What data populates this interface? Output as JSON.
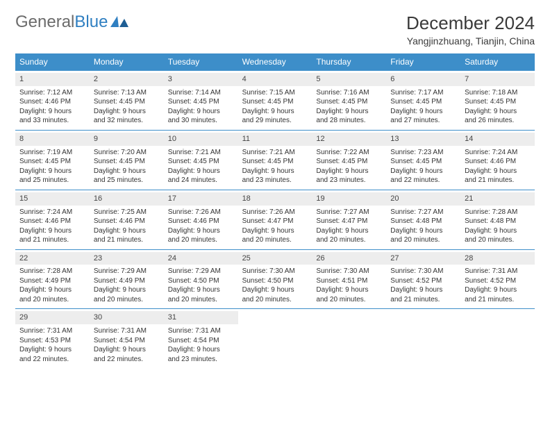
{
  "logo": {
    "text1": "General",
    "text2": "Blue"
  },
  "title": "December 2024",
  "location": "Yangjinzhuang, Tianjin, China",
  "colors": {
    "header_bg": "#3d8ec9",
    "header_text": "#ffffff",
    "daynum_bg": "#ededed",
    "border": "#3d8ec9",
    "logo_gray": "#6b6b6b",
    "logo_blue": "#2f7fc1"
  },
  "dayNames": [
    "Sunday",
    "Monday",
    "Tuesday",
    "Wednesday",
    "Thursday",
    "Friday",
    "Saturday"
  ],
  "weeks": [
    [
      {
        "day": 1,
        "sunrise": "7:12 AM",
        "sunset": "4:46 PM",
        "dl1": "Daylight: 9 hours",
        "dl2": "and 33 minutes."
      },
      {
        "day": 2,
        "sunrise": "7:13 AM",
        "sunset": "4:45 PM",
        "dl1": "Daylight: 9 hours",
        "dl2": "and 32 minutes."
      },
      {
        "day": 3,
        "sunrise": "7:14 AM",
        "sunset": "4:45 PM",
        "dl1": "Daylight: 9 hours",
        "dl2": "and 30 minutes."
      },
      {
        "day": 4,
        "sunrise": "7:15 AM",
        "sunset": "4:45 PM",
        "dl1": "Daylight: 9 hours",
        "dl2": "and 29 minutes."
      },
      {
        "day": 5,
        "sunrise": "7:16 AM",
        "sunset": "4:45 PM",
        "dl1": "Daylight: 9 hours",
        "dl2": "and 28 minutes."
      },
      {
        "day": 6,
        "sunrise": "7:17 AM",
        "sunset": "4:45 PM",
        "dl1": "Daylight: 9 hours",
        "dl2": "and 27 minutes."
      },
      {
        "day": 7,
        "sunrise": "7:18 AM",
        "sunset": "4:45 PM",
        "dl1": "Daylight: 9 hours",
        "dl2": "and 26 minutes."
      }
    ],
    [
      {
        "day": 8,
        "sunrise": "7:19 AM",
        "sunset": "4:45 PM",
        "dl1": "Daylight: 9 hours",
        "dl2": "and 25 minutes."
      },
      {
        "day": 9,
        "sunrise": "7:20 AM",
        "sunset": "4:45 PM",
        "dl1": "Daylight: 9 hours",
        "dl2": "and 25 minutes."
      },
      {
        "day": 10,
        "sunrise": "7:21 AM",
        "sunset": "4:45 PM",
        "dl1": "Daylight: 9 hours",
        "dl2": "and 24 minutes."
      },
      {
        "day": 11,
        "sunrise": "7:21 AM",
        "sunset": "4:45 PM",
        "dl1": "Daylight: 9 hours",
        "dl2": "and 23 minutes."
      },
      {
        "day": 12,
        "sunrise": "7:22 AM",
        "sunset": "4:45 PM",
        "dl1": "Daylight: 9 hours",
        "dl2": "and 23 minutes."
      },
      {
        "day": 13,
        "sunrise": "7:23 AM",
        "sunset": "4:45 PM",
        "dl1": "Daylight: 9 hours",
        "dl2": "and 22 minutes."
      },
      {
        "day": 14,
        "sunrise": "7:24 AM",
        "sunset": "4:46 PM",
        "dl1": "Daylight: 9 hours",
        "dl2": "and 21 minutes."
      }
    ],
    [
      {
        "day": 15,
        "sunrise": "7:24 AM",
        "sunset": "4:46 PM",
        "dl1": "Daylight: 9 hours",
        "dl2": "and 21 minutes."
      },
      {
        "day": 16,
        "sunrise": "7:25 AM",
        "sunset": "4:46 PM",
        "dl1": "Daylight: 9 hours",
        "dl2": "and 21 minutes."
      },
      {
        "day": 17,
        "sunrise": "7:26 AM",
        "sunset": "4:46 PM",
        "dl1": "Daylight: 9 hours",
        "dl2": "and 20 minutes."
      },
      {
        "day": 18,
        "sunrise": "7:26 AM",
        "sunset": "4:47 PM",
        "dl1": "Daylight: 9 hours",
        "dl2": "and 20 minutes."
      },
      {
        "day": 19,
        "sunrise": "7:27 AM",
        "sunset": "4:47 PM",
        "dl1": "Daylight: 9 hours",
        "dl2": "and 20 minutes."
      },
      {
        "day": 20,
        "sunrise": "7:27 AM",
        "sunset": "4:48 PM",
        "dl1": "Daylight: 9 hours",
        "dl2": "and 20 minutes."
      },
      {
        "day": 21,
        "sunrise": "7:28 AM",
        "sunset": "4:48 PM",
        "dl1": "Daylight: 9 hours",
        "dl2": "and 20 minutes."
      }
    ],
    [
      {
        "day": 22,
        "sunrise": "7:28 AM",
        "sunset": "4:49 PM",
        "dl1": "Daylight: 9 hours",
        "dl2": "and 20 minutes."
      },
      {
        "day": 23,
        "sunrise": "7:29 AM",
        "sunset": "4:49 PM",
        "dl1": "Daylight: 9 hours",
        "dl2": "and 20 minutes."
      },
      {
        "day": 24,
        "sunrise": "7:29 AM",
        "sunset": "4:50 PM",
        "dl1": "Daylight: 9 hours",
        "dl2": "and 20 minutes."
      },
      {
        "day": 25,
        "sunrise": "7:30 AM",
        "sunset": "4:50 PM",
        "dl1": "Daylight: 9 hours",
        "dl2": "and 20 minutes."
      },
      {
        "day": 26,
        "sunrise": "7:30 AM",
        "sunset": "4:51 PM",
        "dl1": "Daylight: 9 hours",
        "dl2": "and 20 minutes."
      },
      {
        "day": 27,
        "sunrise": "7:30 AM",
        "sunset": "4:52 PM",
        "dl1": "Daylight: 9 hours",
        "dl2": "and 21 minutes."
      },
      {
        "day": 28,
        "sunrise": "7:31 AM",
        "sunset": "4:52 PM",
        "dl1": "Daylight: 9 hours",
        "dl2": "and 21 minutes."
      }
    ],
    [
      {
        "day": 29,
        "sunrise": "7:31 AM",
        "sunset": "4:53 PM",
        "dl1": "Daylight: 9 hours",
        "dl2": "and 22 minutes."
      },
      {
        "day": 30,
        "sunrise": "7:31 AM",
        "sunset": "4:54 PM",
        "dl1": "Daylight: 9 hours",
        "dl2": "and 22 minutes."
      },
      {
        "day": 31,
        "sunrise": "7:31 AM",
        "sunset": "4:54 PM",
        "dl1": "Daylight: 9 hours",
        "dl2": "and 23 minutes."
      },
      null,
      null,
      null,
      null
    ]
  ]
}
